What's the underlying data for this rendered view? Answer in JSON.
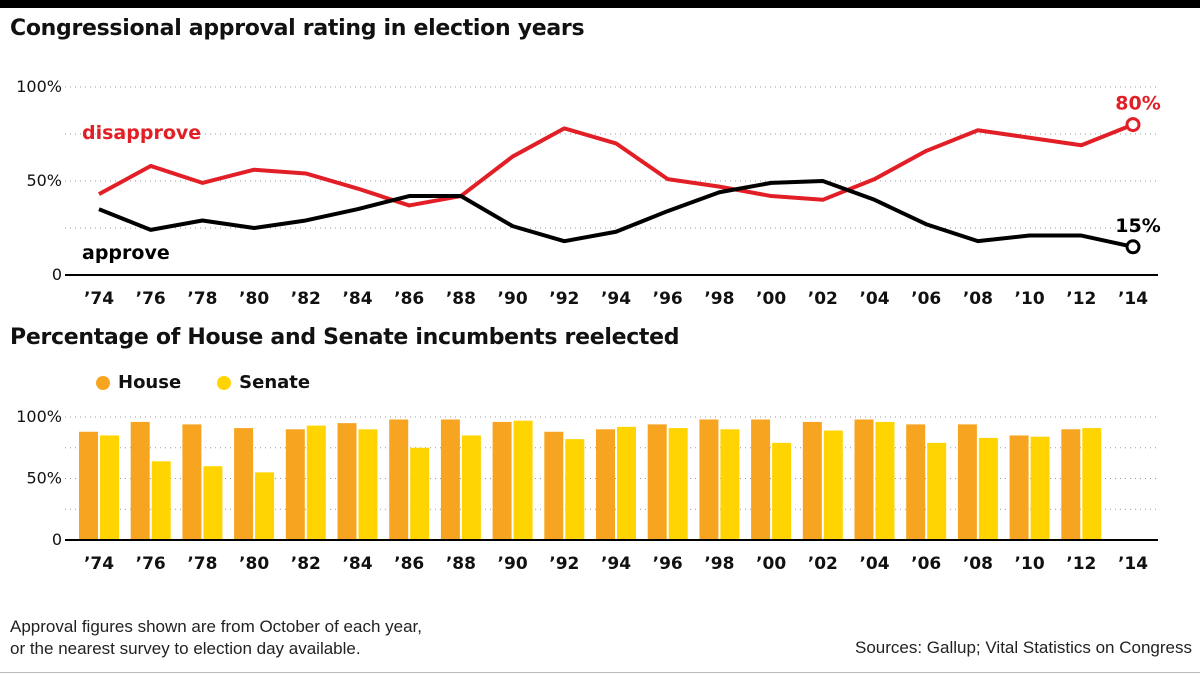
{
  "chart1_title": "Congressional approval rating in election years",
  "chart2_title": "Percentage of House and Senate incumbents reelected",
  "note": [
    "Approval figures shown are from October of each year,",
    "or the nearest survey to election day available."
  ],
  "source": "Sources: Gallup; Vital Statistics on Congress",
  "colors": {
    "disapprove": "#e21f26",
    "approve": "#000000",
    "house": "#f7a521",
    "senate": "#ffd400",
    "grid": "#999999"
  },
  "chart_data": [
    {
      "type": "line",
      "title": "Congressional approval rating in election years",
      "x": [
        "’74",
        "’76",
        "’78",
        "’80",
        "’82",
        "’84",
        "’86",
        "’88",
        "’90",
        "’92",
        "’94",
        "’96",
        "’98",
        "’00",
        "’02",
        "’04",
        "’06",
        "’08",
        "’10",
        "’12",
        "’14"
      ],
      "ylim": [
        0,
        100
      ],
      "yticks": [
        "0",
        "50%",
        "100%"
      ],
      "grid": true,
      "series": [
        {
          "name": "disapprove",
          "color": "#e21f26",
          "values": [
            43,
            58,
            49,
            56,
            54,
            46,
            37,
            42,
            63,
            78,
            70,
            51,
            47,
            42,
            40,
            51,
            66,
            77,
            73,
            69,
            80
          ],
          "end_label": "80%"
        },
        {
          "name": "approve",
          "color": "#000000",
          "values": [
            35,
            24,
            29,
            25,
            29,
            35,
            42,
            42,
            26,
            18,
            23,
            34,
            44,
            49,
            50,
            40,
            27,
            18,
            21,
            21,
            15
          ],
          "end_label": "15%"
        }
      ]
    },
    {
      "type": "bar",
      "title": "Percentage of House and Senate incumbents reelected",
      "categories": [
        "’74",
        "’76",
        "’78",
        "’80",
        "’82",
        "’84",
        "’86",
        "’88",
        "’90",
        "’92",
        "’94",
        "’96",
        "’98",
        "’00",
        "’02",
        "’04",
        "’06",
        "’08",
        "’10",
        "’12",
        "’14"
      ],
      "ylim": [
        0,
        100
      ],
      "yticks": [
        "0",
        "50%",
        "100%"
      ],
      "grid": true,
      "legend": "top-left",
      "series": [
        {
          "name": "House",
          "color": "#f7a521",
          "values": [
            88,
            96,
            94,
            91,
            90,
            95,
            98,
            98,
            96,
            88,
            90,
            94,
            98,
            98,
            96,
            98,
            94,
            94,
            85,
            90,
            null
          ]
        },
        {
          "name": "Senate",
          "color": "#ffd400",
          "values": [
            85,
            64,
            60,
            55,
            93,
            90,
            75,
            85,
            97,
            82,
            92,
            91,
            90,
            79,
            89,
            96,
            79,
            83,
            84,
            91,
            null
          ]
        }
      ]
    }
  ]
}
